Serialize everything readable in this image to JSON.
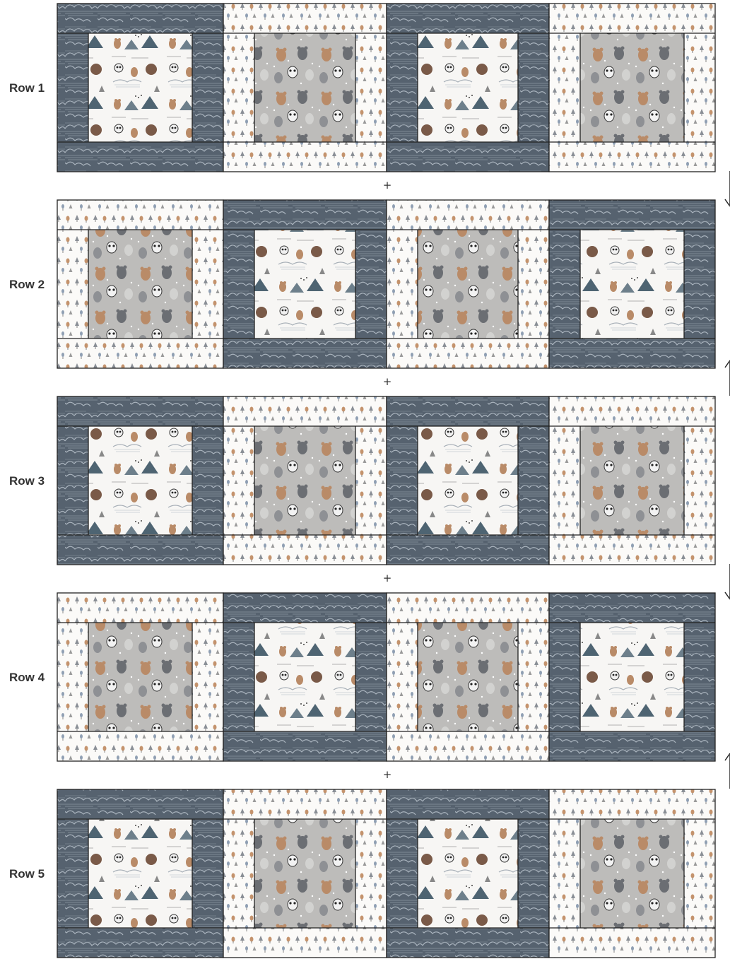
{
  "row_labels": [
    "Row 1",
    "Row 2",
    "Row 3",
    "Row 4",
    "Row 5"
  ],
  "joiner_symbol": "+",
  "colors": {
    "cloud_dark": "#56626f",
    "cloud_line": "#a9b3bd",
    "tree_white": "#fbfaf8",
    "animal_gray": "#bdbcba",
    "scenic_white": "#f7f6f4",
    "bear_brown": "#b98b68",
    "mountain_slate": "#4e6472",
    "outline": "#222222"
  },
  "rows": [
    {
      "label": "Row 1",
      "blocks": [
        "A",
        "B",
        "A",
        "B"
      ]
    },
    {
      "label": "Row 2",
      "blocks": [
        "B",
        "A",
        "B",
        "A"
      ]
    },
    {
      "label": "Row 3",
      "blocks": [
        "A",
        "B",
        "A",
        "B"
      ]
    },
    {
      "label": "Row 4",
      "blocks": [
        "B",
        "A",
        "B",
        "A"
      ]
    },
    {
      "label": "Row 5",
      "blocks": [
        "A",
        "B",
        "A",
        "B"
      ]
    }
  ],
  "block_types": {
    "A": {
      "border": "cloud-print",
      "center": "scenic-animal-print"
    },
    "B": {
      "border": "tree-print",
      "center": "gray-animal-print"
    }
  },
  "pressing_arrows": [
    {
      "between_rows": [
        1,
        2
      ],
      "direction": "down"
    },
    {
      "between_rows": [
        2,
        3
      ],
      "direction": "up"
    },
    {
      "between_rows": [
        3,
        4
      ],
      "direction": "down"
    },
    {
      "between_rows": [
        4,
        5
      ],
      "direction": "up"
    }
  ]
}
